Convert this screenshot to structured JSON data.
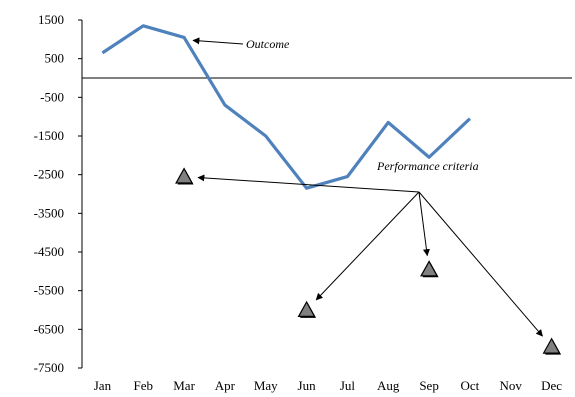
{
  "chart_data": {
    "type": "line",
    "title": "",
    "xlabel": "",
    "ylabel": "",
    "categories": [
      "Jan",
      "Feb",
      "Mar",
      "Apr",
      "May",
      "Jun",
      "Jul",
      "Aug",
      "Sep",
      "Oct",
      "Nov",
      "Dec"
    ],
    "y_ticks": [
      "1500",
      "500",
      "-500",
      "-1500",
      "-2500",
      "-3500",
      "-4500",
      "-5500",
      "-6500",
      "-7500"
    ],
    "ylim": [
      -7500,
      1500
    ],
    "grid": false,
    "legend": "none",
    "series": [
      {
        "values": [
          650,
          1350,
          1050,
          -700,
          -1500,
          -2850,
          -2550,
          -1150,
          -2050,
          -1050,
          null,
          null
        ],
        "color": "#4f81bd"
      }
    ],
    "criteria_points": [
      {
        "x": "Mar",
        "y": -2550
      },
      {
        "x": "Jun",
        "y": -6000
      },
      {
        "x": "Sep",
        "y": -4950
      },
      {
        "x": "Dec",
        "y": -6950
      }
    ],
    "marker_color": "#808080",
    "annotations": [
      {
        "text": "Outcome",
        "points_to": {
          "x": "Mar",
          "y": 1050
        }
      },
      {
        "text": "Performance criteria",
        "points_to": [
          "Mar",
          "Jun",
          "Sep",
          "Dec"
        ]
      }
    ]
  }
}
